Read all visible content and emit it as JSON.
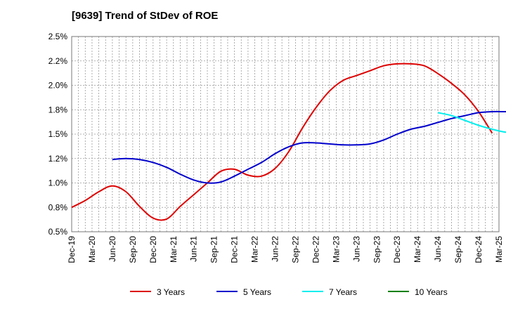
{
  "chart_data": {
    "type": "line",
    "title": "[9639]  Trend of StDev of ROE",
    "xlabel": "",
    "ylabel": "",
    "ylim": [
      0.5,
      2.5
    ],
    "y_ticks": [
      "0.5%",
      "0.8%",
      "1.0%",
      "1.2%",
      "1.5%",
      "1.8%",
      "2.0%",
      "2.2%",
      "2.5%"
    ],
    "x_ticks": [
      "Dec-19",
      "Mar-20",
      "Jun-20",
      "Sep-20",
      "Dec-20",
      "Mar-21",
      "Jun-21",
      "Sep-21",
      "Dec-21",
      "Mar-22",
      "Jun-22",
      "Sep-22",
      "Dec-22",
      "Mar-23",
      "Jun-23",
      "Sep-23",
      "Dec-23",
      "Mar-24",
      "Jun-24",
      "Sep-24",
      "Dec-24",
      "Mar-25"
    ],
    "grid": true,
    "legend_position": "bottom",
    "series": [
      {
        "name": "3 Years",
        "color": "#dd0000",
        "start_index": 0,
        "values": [
          0.75,
          0.82,
          0.91,
          0.97,
          0.91,
          0.76,
          0.64,
          0.63,
          0.76,
          0.88,
          1.0,
          1.12,
          1.14,
          1.08,
          1.07,
          1.15,
          1.32,
          1.56,
          1.77,
          1.94,
          2.05,
          2.1,
          2.15,
          2.2,
          2.22,
          2.22,
          2.2,
          2.12,
          2.02,
          1.9,
          1.73,
          1.51
        ]
      },
      {
        "name": "5 Years",
        "color": "#0000cc",
        "start_index": 3,
        "values": [
          1.24,
          1.25,
          1.24,
          1.21,
          1.16,
          1.09,
          1.03,
          1.0,
          1.01,
          1.07,
          1.14,
          1.21,
          1.3,
          1.37,
          1.41,
          1.41,
          1.4,
          1.39,
          1.39,
          1.4,
          1.44,
          1.5,
          1.55,
          1.58,
          1.62,
          1.66,
          1.69,
          1.72,
          1.73,
          1.73,
          1.73,
          1.73,
          1.73,
          1.73,
          1.73
        ]
      },
      {
        "name": "7 Years",
        "color": "#00eeee",
        "start_index": 27,
        "values": [
          1.72,
          1.69,
          1.64,
          1.59,
          1.55,
          1.52,
          1.52,
          1.53,
          1.53,
          1.53,
          1.54,
          1.56,
          1.57,
          1.57,
          1.57,
          1.57,
          1.56,
          1.54,
          1.52
        ]
      },
      {
        "name": "10 Years",
        "color": "#008000",
        "start_index": 0,
        "values": []
      }
    ]
  }
}
